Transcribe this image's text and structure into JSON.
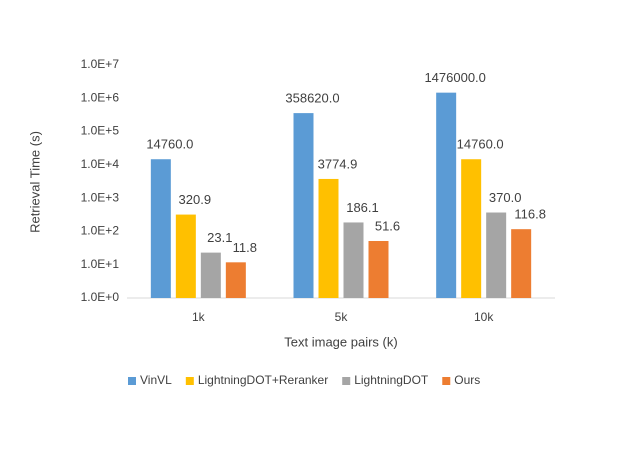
{
  "chart_data": {
    "type": "bar",
    "y_label": "Retrieval Time (s)",
    "x_label": "Text image pairs (k)",
    "categories": [
      "1k",
      "5k",
      "10k"
    ],
    "series": [
      {
        "name": "VinVL",
        "color": "#5b9bd5",
        "values": [
          14760,
          358620,
          1476000
        ],
        "value_labels": [
          "14760.0",
          "358620.0",
          "1476000.0"
        ]
      },
      {
        "name": "LightningDOT+Reranker",
        "color": "#ffc000",
        "values": [
          320.9,
          3774.9,
          14760
        ],
        "value_labels": [
          "320.9",
          "3774.9",
          "14760.0"
        ]
      },
      {
        "name": "LightningDOT",
        "color": "#a5a5a5",
        "values": [
          23.1,
          186.1,
          370
        ],
        "value_labels": [
          "23.1",
          "186.1",
          "370.0"
        ]
      },
      {
        "name": "Ours",
        "color": "#ed7d31",
        "values": [
          11.8,
          51.6,
          116.8
        ],
        "value_labels": [
          "11.8",
          "51.6",
          "116.8"
        ]
      }
    ],
    "yscale": "log",
    "ylim": [
      1,
      10000000
    ],
    "yticks": [
      {
        "value": 1,
        "label": "1.0E+0"
      },
      {
        "value": 10,
        "label": "1.0E+1"
      },
      {
        "value": 100,
        "label": "1.0E+2"
      },
      {
        "value": 1000,
        "label": "1.0E+3"
      },
      {
        "value": 10000,
        "label": "1.0E+4"
      },
      {
        "value": 100000,
        "label": "1.0E+5"
      },
      {
        "value": 1000000,
        "label": "1.0E+6"
      },
      {
        "value": 10000000,
        "label": "1.0E+7"
      }
    ],
    "grid": false,
    "legend": "bottom"
  }
}
